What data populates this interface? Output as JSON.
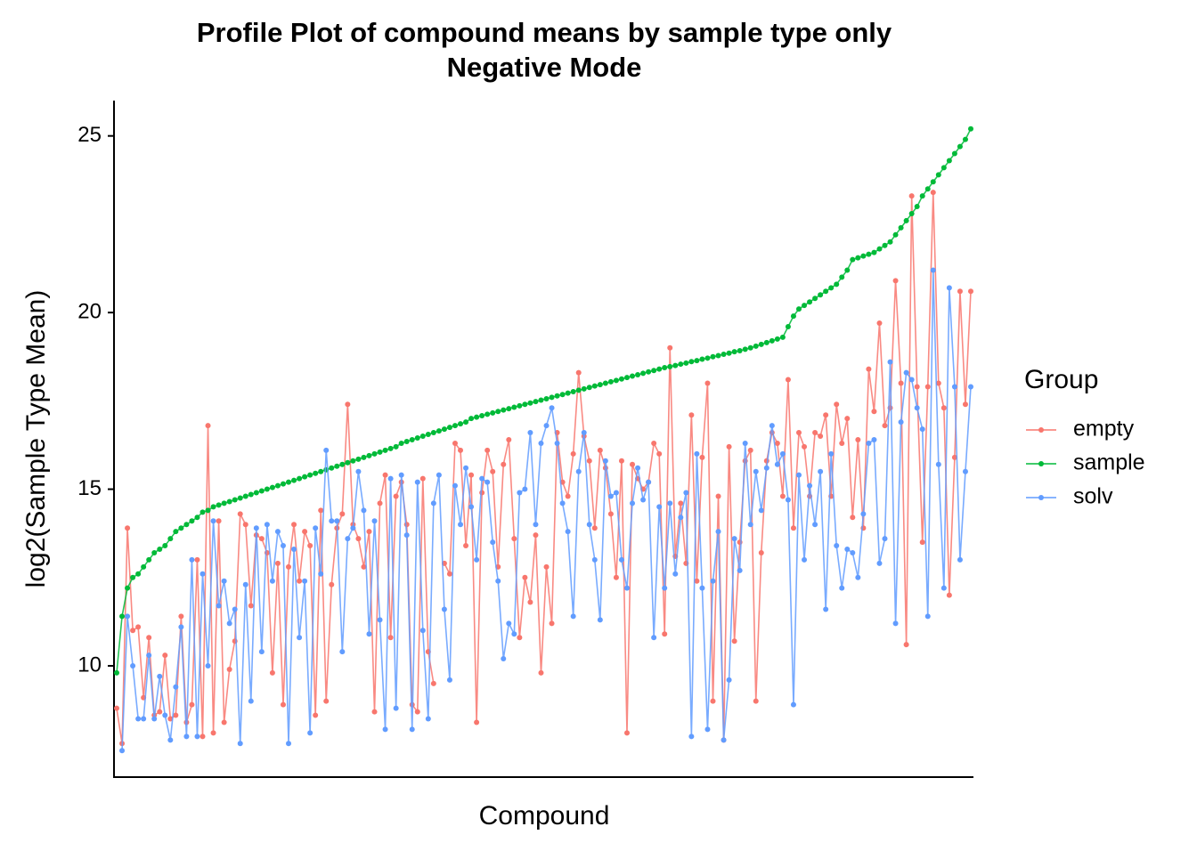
{
  "chart_data": {
    "type": "line",
    "title": [
      "Profile Plot of compound means by sample type only",
      "Negative Mode"
    ],
    "x_label": "Compound",
    "y_label": "log2(Sample Type Mean)",
    "legend_title": "Group",
    "legend": "right",
    "ylim": [
      6.85,
      26.0
    ],
    "yticks": [
      10,
      15,
      20,
      25
    ],
    "categories": [
      null,
      null,
      null,
      null,
      null,
      null,
      null,
      null,
      null,
      null,
      null,
      null,
      null,
      null,
      null,
      null,
      null,
      null,
      null,
      null,
      null,
      null,
      null,
      null,
      null,
      null,
      null,
      null,
      null,
      null,
      null,
      null,
      null,
      null,
      null,
      null,
      null,
      null,
      null,
      null,
      null,
      null,
      null,
      null,
      null,
      null,
      null,
      null,
      null,
      null,
      null,
      null,
      null,
      null,
      null,
      null,
      null,
      null,
      null,
      null,
      null,
      null,
      null,
      null,
      null,
      null,
      null,
      null,
      null,
      null,
      null,
      null,
      null,
      null,
      null,
      null,
      null,
      null,
      null,
      null,
      null,
      null,
      null,
      null,
      null,
      null,
      null,
      null,
      null,
      null,
      null,
      null,
      null,
      null,
      null,
      null,
      null,
      null,
      null,
      null,
      null,
      null,
      null,
      null,
      null,
      null,
      null,
      null,
      null,
      null,
      null,
      null,
      null,
      null,
      null,
      null,
      null,
      null,
      null,
      null,
      null,
      null,
      null,
      null,
      null,
      null,
      null,
      null,
      null,
      null,
      null,
      null,
      null,
      null,
      null,
      null,
      null,
      null,
      null,
      null,
      null,
      null,
      null,
      null,
      null,
      null,
      null,
      null,
      null,
      null,
      null,
      null,
      null,
      null,
      null,
      null,
      null,
      null,
      null,
      null
    ],
    "series": [
      {
        "name": "empty",
        "color": "#F8766D",
        "values": [
          8.8,
          7.8,
          13.9,
          11.0,
          11.1,
          9.1,
          10.8,
          8.6,
          8.7,
          10.3,
          8.5,
          8.6,
          11.4,
          8.4,
          8.9,
          13.0,
          8.0,
          16.8,
          8.1,
          14.1,
          8.4,
          9.9,
          10.7,
          14.3,
          14.0,
          11.7,
          13.7,
          13.6,
          13.2,
          9.8,
          12.9,
          8.9,
          12.8,
          14.0,
          12.4,
          13.8,
          13.4,
          8.6,
          14.4,
          9.0,
          12.3,
          13.9,
          14.3,
          17.4,
          14.0,
          13.6,
          12.8,
          13.8,
          8.7,
          14.6,
          15.4,
          10.8,
          14.8,
          15.2,
          14.0,
          8.9,
          8.7,
          15.3,
          10.4,
          9.5,
          null,
          12.9,
          12.6,
          16.3,
          16.1,
          13.4,
          15.4,
          8.4,
          14.9,
          16.1,
          15.5,
          12.8,
          15.7,
          16.4,
          13.6,
          10.8,
          12.5,
          11.8,
          13.7,
          9.8,
          12.8,
          11.2,
          16.6,
          15.2,
          14.8,
          16.0,
          18.3,
          16.5,
          15.8,
          13.9,
          16.1,
          15.6,
          14.3,
          12.5,
          15.8,
          8.1,
          15.7,
          15.3,
          15.0,
          15.2,
          16.3,
          16.0,
          10.9,
          19.0,
          13.1,
          14.6,
          12.9,
          17.1,
          12.4,
          15.9,
          18.0,
          9.0,
          14.8,
          7.9,
          16.2,
          10.7,
          13.5,
          15.8,
          16.1,
          9.0,
          13.2,
          15.8,
          16.6,
          16.3,
          14.8,
          18.1,
          13.9,
          16.6,
          16.2,
          14.8,
          16.6,
          16.5,
          17.1,
          14.8,
          17.4,
          16.3,
          17.0,
          14.2,
          16.4,
          13.9,
          18.4,
          17.2,
          19.7,
          16.8,
          17.3,
          20.9,
          18.0,
          10.6,
          23.3,
          17.9,
          13.5,
          17.9,
          23.4,
          18.0,
          17.3,
          12.0,
          15.9,
          20.6,
          17.4,
          20.6
        ]
      },
      {
        "name": "sample",
        "color": "#00BA38",
        "values": [
          9.8,
          11.4,
          12.2,
          12.5,
          12.6,
          12.8,
          13.0,
          13.2,
          13.3,
          13.4,
          13.6,
          13.8,
          13.9,
          14.0,
          14.1,
          14.2,
          14.35,
          14.4,
          14.5,
          14.55,
          14.6,
          14.65,
          14.7,
          14.75,
          14.8,
          14.85,
          14.9,
          14.95,
          15.0,
          15.05,
          15.1,
          15.15,
          15.2,
          15.25,
          15.3,
          15.35,
          15.4,
          15.45,
          15.5,
          15.55,
          15.6,
          15.65,
          15.7,
          15.75,
          15.8,
          15.85,
          15.9,
          15.95,
          16.0,
          16.05,
          16.1,
          16.15,
          16.2,
          16.3,
          16.35,
          16.4,
          16.45,
          16.5,
          16.55,
          16.6,
          16.65,
          16.7,
          16.75,
          16.8,
          16.85,
          16.9,
          17.0,
          17.04,
          17.08,
          17.12,
          17.16,
          17.2,
          17.24,
          17.28,
          17.32,
          17.36,
          17.4,
          17.44,
          17.48,
          17.52,
          17.56,
          17.6,
          17.64,
          17.68,
          17.72,
          17.76,
          17.8,
          17.84,
          17.88,
          17.92,
          17.96,
          18.0,
          18.04,
          18.08,
          18.12,
          18.16,
          18.2,
          18.24,
          18.28,
          18.32,
          18.36,
          18.4,
          18.44,
          18.47,
          18.5,
          18.54,
          18.57,
          18.61,
          18.64,
          18.68,
          18.71,
          18.75,
          18.78,
          18.82,
          18.85,
          18.89,
          18.92,
          18.96,
          19.0,
          19.05,
          19.1,
          19.15,
          19.2,
          19.25,
          19.3,
          19.6,
          19.9,
          20.1,
          20.2,
          20.3,
          20.4,
          20.5,
          20.6,
          20.7,
          20.8,
          21.0,
          21.2,
          21.5,
          21.55,
          21.6,
          21.65,
          21.7,
          21.8,
          21.9,
          22.0,
          22.2,
          22.4,
          22.6,
          22.8,
          23.0,
          23.3,
          23.5,
          23.7,
          23.9,
          24.1,
          24.3,
          24.5,
          24.7,
          24.9,
          25.2
        ]
      },
      {
        "name": "solv",
        "color": "#619CFF",
        "values": [
          null,
          7.6,
          11.4,
          10.0,
          8.5,
          8.5,
          10.3,
          8.5,
          9.7,
          8.6,
          7.9,
          9.4,
          11.1,
          8.0,
          13.0,
          8.0,
          12.6,
          10.0,
          14.1,
          11.7,
          12.4,
          11.2,
          11.6,
          7.8,
          12.3,
          9.0,
          13.9,
          10.4,
          14.0,
          12.4,
          13.8,
          13.4,
          7.8,
          13.3,
          10.8,
          12.4,
          8.1,
          13.9,
          12.6,
          16.1,
          14.1,
          14.1,
          10.4,
          13.6,
          13.9,
          15.5,
          14.4,
          10.9,
          14.1,
          11.3,
          8.2,
          15.3,
          8.8,
          15.4,
          13.7,
          8.2,
          15.2,
          11.0,
          8.5,
          14.6,
          15.4,
          11.6,
          9.6,
          15.1,
          14.0,
          15.6,
          14.5,
          13.0,
          15.3,
          15.2,
          13.5,
          12.4,
          10.2,
          11.2,
          10.9,
          14.9,
          15.0,
          16.6,
          14.0,
          16.3,
          16.8,
          17.3,
          16.3,
          14.6,
          13.8,
          11.4,
          15.5,
          16.6,
          14.0,
          13.0,
          11.3,
          15.8,
          14.8,
          14.9,
          13.0,
          12.2,
          14.6,
          15.6,
          14.7,
          15.2,
          10.8,
          14.5,
          12.2,
          14.6,
          12.6,
          14.2,
          14.9,
          8.0,
          16.0,
          12.2,
          8.2,
          12.4,
          13.8,
          7.9,
          9.6,
          13.6,
          12.7,
          16.3,
          14.0,
          15.5,
          14.4,
          15.6,
          16.8,
          15.7,
          16.0,
          14.7,
          8.9,
          15.4,
          13.0,
          15.1,
          14.0,
          15.5,
          11.6,
          16.0,
          13.4,
          12.2,
          13.3,
          13.2,
          12.5,
          14.3,
          16.3,
          16.4,
          12.9,
          13.6,
          18.6,
          11.2,
          16.9,
          18.3,
          18.1,
          17.3,
          16.7,
          11.4,
          21.2,
          15.7,
          12.2,
          20.7,
          17.9,
          13.0,
          15.5,
          17.9
        ]
      }
    ]
  }
}
